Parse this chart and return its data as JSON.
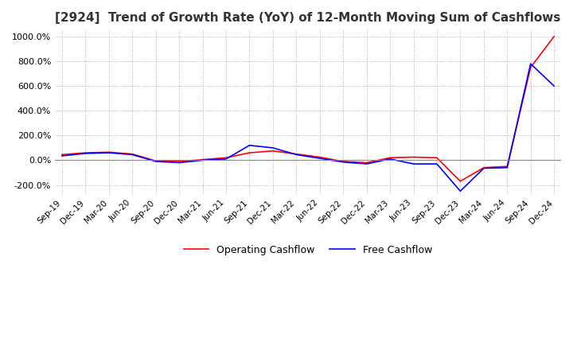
{
  "title": "[2924]  Trend of Growth Rate (YoY) of 12-Month Moving Sum of Cashflows",
  "title_fontsize": 11,
  "ylim": [
    -280,
    1050
  ],
  "yticks": [
    -200,
    0,
    200,
    400,
    600,
    800,
    1000
  ],
  "ytick_labels": [
    "-200.0%",
    "0.0%",
    "200.0%",
    "400.0%",
    "600.0%",
    "800.0%",
    "1000.0%"
  ],
  "x_labels": [
    "Sep-19",
    "Dec-19",
    "Mar-20",
    "Jun-20",
    "Sep-20",
    "Dec-20",
    "Mar-21",
    "Jun-21",
    "Sep-21",
    "Dec-21",
    "Mar-22",
    "Jun-22",
    "Sep-22",
    "Dec-22",
    "Mar-23",
    "Jun-23",
    "Sep-23",
    "Dec-23",
    "Mar-24",
    "Jun-24",
    "Sep-24",
    "Dec-24"
  ],
  "operating_cashflow": [
    45,
    60,
    65,
    50,
    -5,
    -10,
    5,
    20,
    60,
    75,
    50,
    25,
    -10,
    -20,
    20,
    25,
    20,
    -170,
    -60,
    -50,
    750,
    1000
  ],
  "free_cashflow": [
    35,
    55,
    60,
    45,
    -10,
    -20,
    0,
    10,
    120,
    100,
    45,
    15,
    -15,
    -30,
    10,
    -30,
    -30,
    -250,
    -65,
    -60,
    780,
    600
  ],
  "op_color": "#ff0000",
  "free_color": "#0000ff",
  "grid_color": "#aaaaaa",
  "background_color": "#ffffff",
  "line_width": 1.2
}
